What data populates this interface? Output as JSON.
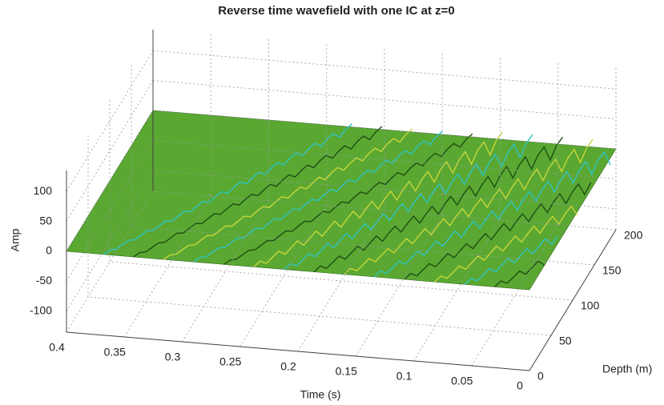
{
  "chart_data": {
    "type": "surface3d",
    "title": "Reverse time wavefield with one IC at z=0",
    "x_label": "Time (s)",
    "y_label": "Depth (m)",
    "z_label": "Amp",
    "xlim": [
      0,
      0.4
    ],
    "xticks": [
      0,
      0.05,
      0.1,
      0.15,
      0.2,
      0.25,
      0.3,
      0.35,
      0.4
    ],
    "ylim": [
      0,
      200
    ],
    "yticks": [
      0,
      50,
      100,
      150,
      200
    ],
    "zlim": [
      -135,
      135
    ],
    "zticks": [
      -100,
      -50,
      0,
      50,
      100
    ],
    "grid": true,
    "color": "#5aa832"
  }
}
